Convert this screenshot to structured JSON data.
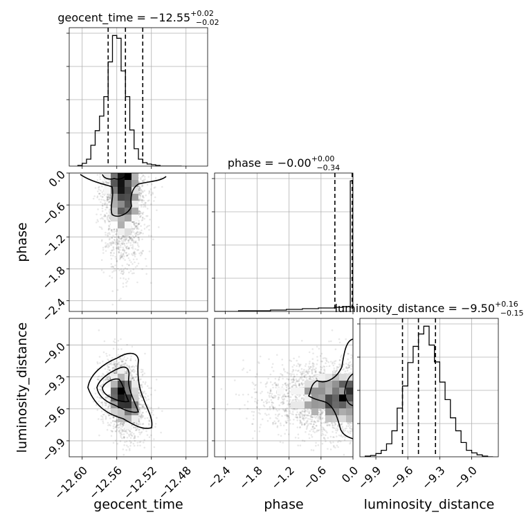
{
  "chart_data": {
    "type": "corner",
    "parameters": [
      "geocent_time",
      "phase",
      "luminosity_distance"
    ],
    "titles": [
      {
        "name": "geocent_time",
        "median": "−12.55",
        "plus": "+0.02",
        "minus": "−0.02"
      },
      {
        "name": "phase",
        "median": "−0.00",
        "plus": "+0.00",
        "minus": "−0.34"
      },
      {
        "name": "luminosity_distance",
        "median": "−9.50",
        "plus": "+0.16",
        "minus": "−0.15"
      }
    ],
    "ranges": {
      "geocent_time": [
        -12.615,
        -12.455
      ],
      "phase": [
        -2.6,
        0.0
      ],
      "luminosity_distance": [
        -10.05,
        -8.75
      ]
    },
    "ticks": {
      "geocent_time": {
        "values": [
          -12.6,
          -12.56,
          -12.52,
          -12.48
        ],
        "labels": [
          "−12.60",
          "−12.56",
          "−12.52",
          "−12.48"
        ]
      },
      "phase": {
        "values": [
          -2.4,
          -1.8,
          -1.2,
          -0.6,
          0.0
        ],
        "labels": [
          "−2.4",
          "−1.8",
          "−1.2",
          "−0.6",
          "0.0"
        ]
      },
      "luminosity_distance": {
        "values": [
          -9.9,
          -9.6,
          -9.3,
          -9.0
        ],
        "labels": [
          "−9.9",
          "−9.6",
          "−9.3",
          "−9.0"
        ]
      }
    },
    "quantiles": {
      "geocent_time": [
        -12.57,
        -12.55,
        -12.53
      ],
      "phase": [
        -0.34,
        0.0,
        0.0
      ],
      "luminosity_distance": [
        -9.65,
        -9.5,
        -9.34
      ]
    },
    "histograms": {
      "geocent_time": {
        "edges": [
          -12.605,
          -12.6,
          -12.595,
          -12.59,
          -12.585,
          -12.58,
          -12.575,
          -12.57,
          -12.565,
          -12.56,
          -12.555,
          -12.55,
          -12.545,
          -12.54,
          -12.535,
          -12.53,
          -12.525,
          -12.52,
          -12.515,
          -12.51,
          -12.505,
          -12.5,
          -12.495,
          -12.49,
          -12.485
        ],
        "counts": [
          1,
          4,
          10,
          30,
          51,
          72,
          100,
          150,
          188,
          184,
          137,
          100,
          52,
          25,
          10,
          5,
          3,
          2,
          1,
          0,
          0,
          0,
          0,
          0
        ]
      },
      "phase": {
        "edges": [
          -2.6,
          -2.45,
          -2.3,
          -2.15,
          -2.0,
          -1.85,
          -1.7,
          -1.55,
          -1.4,
          -1.25,
          -1.1,
          -0.95,
          -0.8,
          -0.65,
          -0.5,
          -0.35,
          -0.2,
          -0.05,
          0.0
        ],
        "counts": [
          0,
          0,
          0,
          1,
          1,
          1,
          1,
          2,
          2,
          3,
          3,
          4,
          4,
          5,
          5,
          6,
          7,
          190
        ]
      },
      "luminosity_distance": {
        "edges": [
          -10.0,
          -9.95,
          -9.9,
          -9.85,
          -9.8,
          -9.75,
          -9.7,
          -9.65,
          -9.6,
          -9.55,
          -9.5,
          -9.45,
          -9.4,
          -9.35,
          -9.3,
          -9.25,
          -9.2,
          -9.15,
          -9.1,
          -9.05,
          -9.0,
          -8.95,
          -8.9,
          -8.85,
          -8.8
        ],
        "counts": [
          1,
          2,
          5,
          10,
          20,
          40,
          75,
          109,
          145,
          170,
          189,
          201,
          172,
          146,
          115,
          88,
          60,
          40,
          22,
          10,
          6,
          3,
          1,
          0
        ]
      }
    },
    "scatter_samples": 2500,
    "grid": true
  }
}
